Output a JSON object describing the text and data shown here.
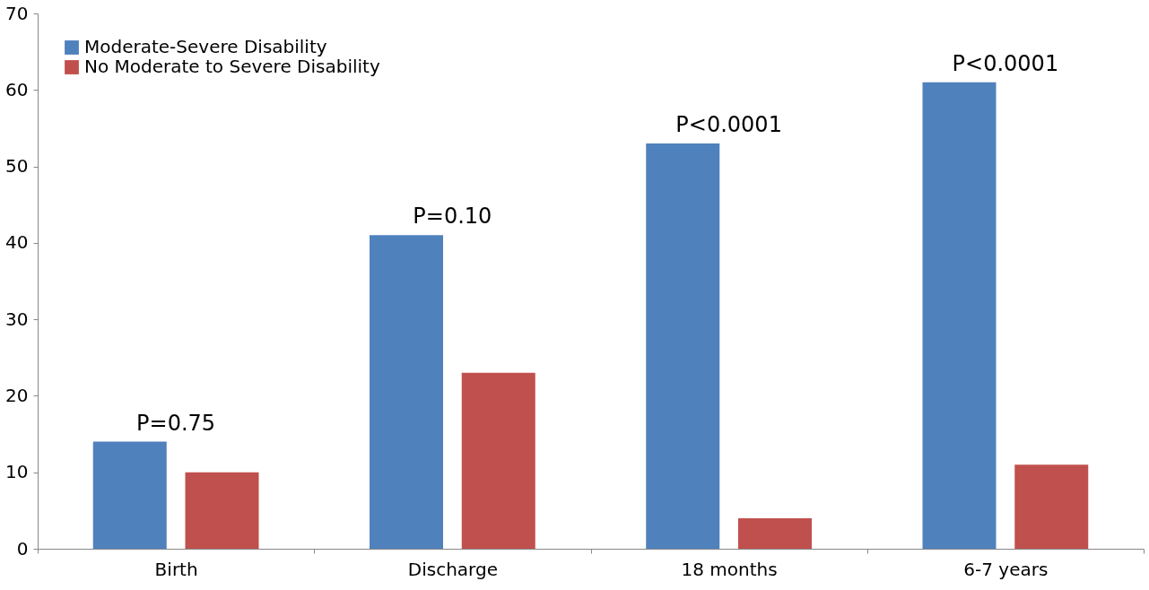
{
  "chart_data": {
    "type": "bar",
    "categories": [
      "Birth",
      "Discharge",
      "18 months",
      "6-7 years"
    ],
    "series": [
      {
        "name": "Moderate-Severe Disability",
        "color": "#4f81bd",
        "values": [
          14,
          41,
          53,
          61
        ]
      },
      {
        "name": "No Moderate to Severe Disability",
        "color": "#c0504d",
        "values": [
          10,
          23,
          4,
          11
        ]
      }
    ],
    "ylim": [
      0,
      70
    ],
    "yticks": [
      0,
      10,
      20,
      30,
      40,
      50,
      60,
      70
    ],
    "grid": false,
    "legend": "top left",
    "annotations": [
      "P=0.75",
      "P=0.10",
      "P<0.0001",
      "P<0.0001"
    ]
  }
}
